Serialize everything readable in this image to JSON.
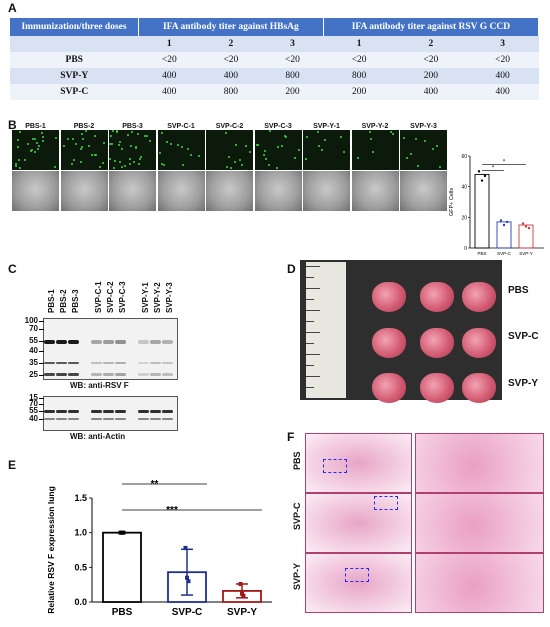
{
  "panels": {
    "a": "A",
    "b": "B",
    "c": "C",
    "d": "D",
    "e": "E",
    "f": "F"
  },
  "table": {
    "col0": "Immunization/three doses",
    "group_hbsag": "IFA antibody titer against HBsAg",
    "group_rsv": "IFA antibody titer against RSV G CCD",
    "dose_row": [
      "",
      "1",
      "2",
      "3",
      "1",
      "2",
      "3"
    ],
    "rows": [
      [
        "PBS",
        "<20",
        "<20",
        "<20",
        "<20",
        "<20",
        "<20"
      ],
      [
        "SVP-Y",
        "400",
        "400",
        "800",
        "800",
        "200",
        "400"
      ],
      [
        "SVP-C",
        "400",
        "800",
        "200",
        "200",
        "400",
        "400"
      ]
    ]
  },
  "panel_b": {
    "sample_labels": [
      "PBS-1",
      "PBS-2",
      "PBS-3",
      "SVP-C-1",
      "SVP-C-2",
      "SVP-C-3",
      "SVP-Y-1",
      "SVP-Y-2",
      "SVP-Y-3"
    ]
  },
  "panel_c": {
    "lane_labels": [
      "PBS-1",
      "PBS-2",
      "PBS-3",
      "SVP-C-1",
      "SVP-C-2",
      "SVP-C-3",
      "SVP-Y-1",
      "SVP-Y-2",
      "SVP-Y-3"
    ],
    "mw_top": [
      "100",
      "70",
      "55",
      "40",
      "35",
      "25",
      "15"
    ],
    "mw_bottom": [
      "70",
      "55",
      "40"
    ],
    "wb_top": "WB: anti-RSV F",
    "wb_bottom": "WB: anti-Actin"
  },
  "panel_d": {
    "groups": [
      "PBS",
      "SVP-C",
      "SVP-Y"
    ]
  },
  "panel_f": {
    "rows": [
      "PBS",
      "SVP-C",
      "SVP-Y"
    ]
  },
  "chart_data": [
    {
      "type": "bar",
      "panel": "B",
      "categories": [
        "PBS",
        "SVP-C",
        "SVP-Y"
      ],
      "values": [
        48,
        17,
        15
      ],
      "points": [
        [
          50,
          44,
          47
        ],
        [
          18,
          15,
          17
        ],
        [
          16,
          14,
          13
        ]
      ],
      "ylabel": "GFP+ Cells",
      "yticks": [
        "0",
        "20",
        "40",
        "60"
      ],
      "ylim": [
        0,
        60
      ],
      "significance": [
        "*",
        "*"
      ],
      "colors": [
        "#000000",
        "#2b3fb3",
        "#d13b3b"
      ]
    },
    {
      "type": "bar",
      "panel": "E",
      "categories": [
        "PBS",
        "SVP-C",
        "SVP-Y"
      ],
      "values": [
        1.0,
        0.43,
        0.16
      ],
      "errors": [
        0.0,
        0.33,
        0.1
      ],
      "points": [
        [
          1.0,
          1.0,
          1.0
        ],
        [
          0.78,
          0.35,
          0.3
        ],
        [
          0.26,
          0.12,
          0.09
        ]
      ],
      "ylabel": "Relative RSV F expression lung",
      "yticks": [
        "0.0",
        "0.5",
        "1.0",
        "1.5"
      ],
      "ylim": [
        0,
        1.5
      ],
      "significance": [
        "**",
        "***"
      ],
      "colors": [
        "#000000",
        "#1f2f8f",
        "#a01818"
      ]
    }
  ]
}
